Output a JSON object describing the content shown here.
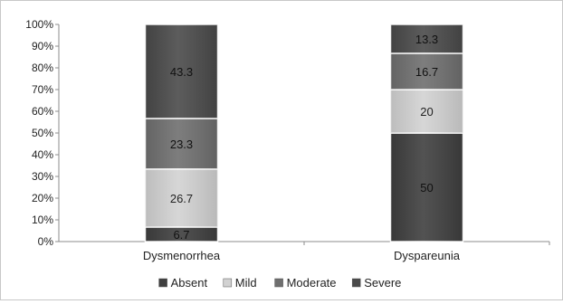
{
  "chart_data": {
    "type": "bar",
    "stacked": true,
    "percent": true,
    "categories": [
      "Dysmenorrhea",
      "Dyspareunia"
    ],
    "series": [
      {
        "name": "Absent",
        "values": [
          6.7,
          50
        ],
        "color": "#3f3f3f"
      },
      {
        "name": "Mild",
        "values": [
          26.7,
          20
        ],
        "color": "#d2d2d2"
      },
      {
        "name": "Moderate",
        "values": [
          23.3,
          16.7
        ],
        "color": "#6f6f6f"
      },
      {
        "name": "Severe",
        "values": [
          43.3,
          13.3
        ],
        "color": "#4a4a4a"
      }
    ],
    "data_labels": [
      [
        "6.7",
        "26.7",
        "23.3",
        "43.3"
      ],
      [
        "50",
        "20",
        "16.7",
        "13.3"
      ]
    ],
    "yticks": [
      "0%",
      "10%",
      "20%",
      "30%",
      "40%",
      "50%",
      "60%",
      "70%",
      "80%",
      "90%",
      "100%"
    ],
    "ylim": [
      0,
      100
    ],
    "grid": false,
    "legend_position": "bottom",
    "title": "",
    "xlabel": "",
    "ylabel": ""
  }
}
